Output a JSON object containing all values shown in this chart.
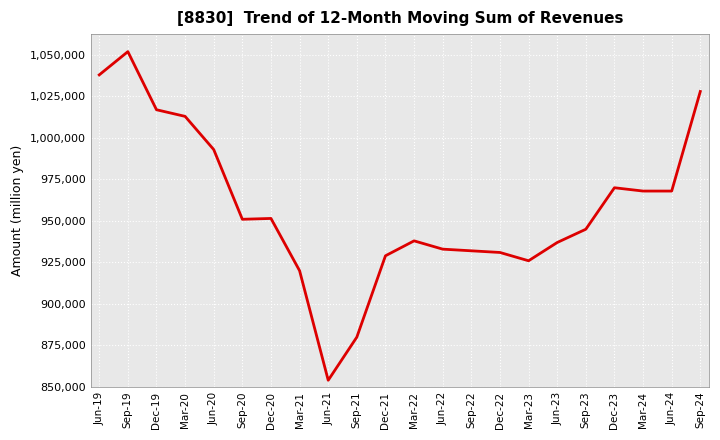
{
  "title": "[8830]  Trend of 12-Month Moving Sum of Revenues",
  "ylabel": "Amount (million yen)",
  "line_color": "#dd0000",
  "fig_facecolor": "#ffffff",
  "plot_facecolor": "#e8e8e8",
  "grid_color": "#ffffff",
  "ylim": [
    850000,
    1062500
  ],
  "yticks": [
    850000,
    875000,
    900000,
    925000,
    950000,
    975000,
    1000000,
    1025000,
    1050000
  ],
  "x_labels": [
    "Jun-19",
    "Sep-19",
    "Dec-19",
    "Mar-20",
    "Jun-20",
    "Sep-20",
    "Dec-20",
    "Mar-21",
    "Jun-21",
    "Sep-21",
    "Dec-21",
    "Mar-22",
    "Jun-22",
    "Sep-22",
    "Dec-22",
    "Mar-23",
    "Jun-23",
    "Sep-23",
    "Dec-23",
    "Mar-24",
    "Jun-24",
    "Sep-24"
  ],
  "values": [
    1038000,
    1052000,
    1017000,
    1013000,
    993000,
    951000,
    951500,
    920000,
    854000,
    880000,
    929000,
    938000,
    933000,
    932000,
    931000,
    926000,
    937000,
    945000,
    970000,
    968000,
    968000,
    1028000
  ]
}
